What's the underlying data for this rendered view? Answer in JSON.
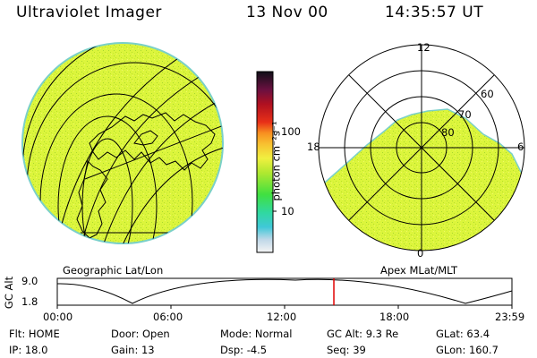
{
  "header": {
    "instrument": "Ultraviolet Imager",
    "date": "13 Nov 00",
    "time": "14:35:57 UT"
  },
  "colorbar": {
    "unit_label": "photon cm⁻²s⁻¹",
    "ticks": [
      "100",
      "10"
    ]
  },
  "left_panel": {
    "label": "Geographic Lat/Lon"
  },
  "right_panel": {
    "label": "Apex MLat/MLT",
    "mlt_labels": {
      "top": "12",
      "left": "18",
      "right": "6",
      "bottom": "0"
    },
    "mlat_labels": [
      "60",
      "70",
      "80"
    ]
  },
  "timeline": {
    "axis_label": "GC Alt",
    "y_ticks": [
      "9.0",
      "1.8"
    ],
    "x_ticks": [
      "00:00",
      "06:00",
      "12:00",
      "18:00",
      "23:59"
    ],
    "current_time_hours": 14.6
  },
  "info": {
    "row1": [
      {
        "key": "Flt:",
        "value": "HOME"
      },
      {
        "key": "Door:",
        "value": "Open"
      },
      {
        "key": "Mode:",
        "value": "Normal"
      },
      {
        "key": "GC Alt:",
        "value": "9.3 Re"
      },
      {
        "key": "GLat:",
        "value": "63.4"
      }
    ],
    "row2": [
      {
        "key": "IP:",
        "value": "18.0"
      },
      {
        "key": "Gain:",
        "value": "13"
      },
      {
        "key": "Dsp:",
        "value": "-4.5"
      },
      {
        "key": "Seq:",
        "value": "39"
      },
      {
        "key": "GLon:",
        "value": "160.7"
      }
    ]
  },
  "colors": {
    "emission": "#dcf53c",
    "emission_dark": "#b8e028",
    "limb": "#7ad0c8",
    "marker": "#e00000"
  }
}
